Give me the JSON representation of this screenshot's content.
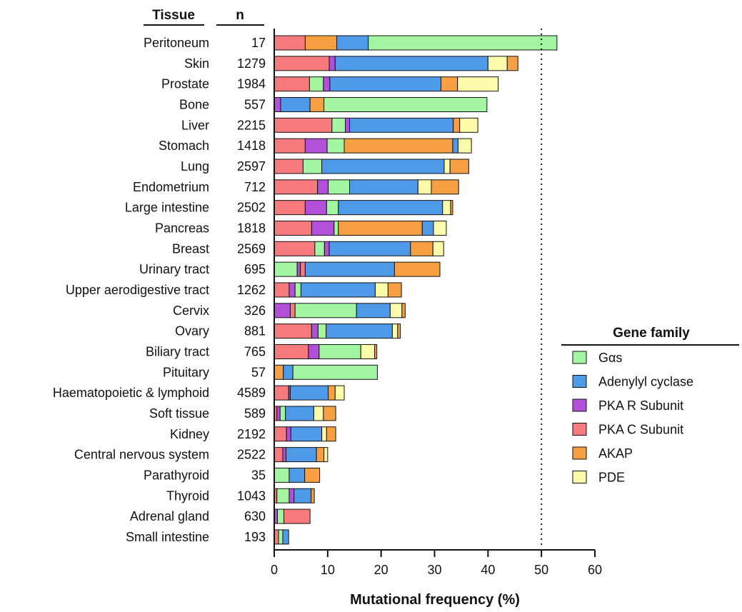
{
  "chart_data": {
    "type": "bar",
    "orientation": "horizontal",
    "stacked": true,
    "column_headers": {
      "tissue": "Tissue",
      "n": "n"
    },
    "xlabel": "Mutational frequency (%)",
    "xlim": [
      0,
      60
    ],
    "xticks": [
      "0",
      "10",
      "20",
      "30",
      "40",
      "50",
      "60"
    ],
    "reference_line": {
      "x": 50,
      "style": "dotted"
    },
    "legend": {
      "title": "Gene family",
      "placement": "right"
    },
    "categories": [
      "Peritoneum",
      "Skin",
      "Prostate",
      "Bone",
      "Liver",
      "Stomach",
      "Lung",
      "Endometrium",
      "Large intestine",
      "Pancreas",
      "Breast",
      "Urinary tract",
      "Upper aerodigestive tract",
      "Cervix",
      "Ovary",
      "Biliary tract",
      "Pituitary",
      "Haematopoietic & lymphoid",
      "Soft tissue",
      "Kidney",
      "Central nervous system",
      "Parathyroid",
      "Thyroid",
      "Adrenal gland",
      "Small intestine"
    ],
    "n": [
      "17",
      "1279",
      "1984",
      "557",
      "2215",
      "1418",
      "2597",
      "712",
      "2502",
      "1818",
      "2569",
      "695",
      "1262",
      "326",
      "881",
      "765",
      "57",
      "4589",
      "589",
      "2192",
      "2522",
      "35",
      "1043",
      "630",
      "193"
    ],
    "series_colors": {
      "gas": "#a4f5a2",
      "ac": "#4f9ae8",
      "pkar": "#b350d9",
      "pkac": "#f77b7c",
      "akap": "#f7a043",
      "pde": "#fbfbaa"
    },
    "series_names": {
      "gas": "Gαs",
      "ac": "Adenylyl cyclase",
      "pkar": "PKA R Subunit",
      "pkac": "PKA C Subunit",
      "akap": "AKAP",
      "pde": "PDE"
    },
    "legend_order": [
      "gas",
      "ac",
      "pkar",
      "pkac",
      "akap",
      "pde"
    ],
    "rows": [
      {
        "segments": [
          [
            "pkac",
            5.8
          ],
          [
            "akap",
            5.9
          ],
          [
            "ac",
            5.9
          ],
          [
            "gas",
            35.3
          ]
        ]
      },
      {
        "segments": [
          [
            "pkac",
            10.3
          ],
          [
            "pkar",
            1.1
          ],
          [
            "ac",
            28.6
          ],
          [
            "pde",
            3.6
          ],
          [
            "akap",
            2.0
          ]
        ]
      },
      {
        "segments": [
          [
            "pkac",
            6.6
          ],
          [
            "gas",
            2.6
          ],
          [
            "pkar",
            1.2
          ],
          [
            "ac",
            20.8
          ],
          [
            "akap",
            3.1
          ],
          [
            "pde",
            7.6
          ]
        ]
      },
      {
        "segments": [
          [
            "pkar",
            1.2
          ],
          [
            "ac",
            5.5
          ],
          [
            "akap",
            2.6
          ],
          [
            "gas",
            30.5
          ]
        ]
      },
      {
        "segments": [
          [
            "pkac",
            10.8
          ],
          [
            "gas",
            2.5
          ],
          [
            "pkar",
            0.8
          ],
          [
            "ac",
            19.4
          ],
          [
            "akap",
            1.2
          ],
          [
            "pde",
            3.4
          ]
        ]
      },
      {
        "segments": [
          [
            "pkac",
            5.8
          ],
          [
            "pkar",
            4.1
          ],
          [
            "gas",
            3.2
          ],
          [
            "akap",
            20.3
          ],
          [
            "ac",
            1.0
          ],
          [
            "pde",
            2.5
          ]
        ]
      },
      {
        "segments": [
          [
            "pkac",
            5.4
          ],
          [
            "gas",
            3.5
          ],
          [
            "ac",
            22.9
          ],
          [
            "pde",
            1.1
          ],
          [
            "akap",
            3.5
          ]
        ]
      },
      {
        "segments": [
          [
            "pkac",
            8.1
          ],
          [
            "pkar",
            2.0
          ],
          [
            "gas",
            4.0
          ],
          [
            "ac",
            12.8
          ],
          [
            "pde",
            2.5
          ],
          [
            "akap",
            5.1
          ]
        ]
      },
      {
        "segments": [
          [
            "pkac",
            5.8
          ],
          [
            "pkar",
            4.0
          ],
          [
            "gas",
            2.2
          ],
          [
            "ac",
            19.5
          ],
          [
            "pde",
            1.5
          ],
          [
            "akap",
            0.4
          ]
        ]
      },
      {
        "segments": [
          [
            "pkac",
            7.0
          ],
          [
            "pkar",
            4.2
          ],
          [
            "gas",
            0.8
          ],
          [
            "akap",
            15.7
          ],
          [
            "ac",
            2.1
          ],
          [
            "pde",
            2.4
          ]
        ]
      },
      {
        "segments": [
          [
            "pkac",
            7.6
          ],
          [
            "gas",
            1.8
          ],
          [
            "pkar",
            0.9
          ],
          [
            "ac",
            15.2
          ],
          [
            "akap",
            4.2
          ],
          [
            "pde",
            2.0
          ]
        ]
      },
      {
        "segments": [
          [
            "gas",
            4.3
          ],
          [
            "pkar",
            0.6
          ],
          [
            "pkac",
            0.9
          ],
          [
            "ac",
            16.7
          ],
          [
            "akap",
            8.5
          ]
        ]
      },
      {
        "segments": [
          [
            "pkac",
            2.8
          ],
          [
            "pkar",
            1.1
          ],
          [
            "gas",
            1.1
          ],
          [
            "ac",
            13.9
          ],
          [
            "pde",
            2.4
          ],
          [
            "akap",
            2.5
          ]
        ]
      },
      {
        "segments": [
          [
            "pkar",
            3.0
          ],
          [
            "pkac",
            0.9
          ],
          [
            "gas",
            11.5
          ],
          [
            "ac",
            6.3
          ],
          [
            "pde",
            2.2
          ],
          [
            "akap",
            0.6
          ]
        ]
      },
      {
        "segments": [
          [
            "pkac",
            7.0
          ],
          [
            "pkar",
            1.2
          ],
          [
            "gas",
            1.5
          ],
          [
            "ac",
            12.4
          ],
          [
            "pde",
            1.0
          ],
          [
            "akap",
            0.5
          ]
        ]
      },
      {
        "segments": [
          [
            "pkac",
            6.4
          ],
          [
            "pkar",
            2.0
          ],
          [
            "gas",
            7.8
          ],
          [
            "pde",
            2.6
          ],
          [
            "akap",
            0.4
          ]
        ]
      },
      {
        "segments": [
          [
            "akap",
            1.7
          ],
          [
            "ac",
            1.8
          ],
          [
            "gas",
            15.8
          ]
        ]
      },
      {
        "segments": [
          [
            "pkac",
            2.7
          ],
          [
            "pkar",
            0.3
          ],
          [
            "ac",
            7.1
          ],
          [
            "akap",
            1.3
          ],
          [
            "pde",
            1.7
          ]
        ]
      },
      {
        "segments": [
          [
            "pkac",
            0.5
          ],
          [
            "pkar",
            0.6
          ],
          [
            "gas",
            1.0
          ],
          [
            "ac",
            5.3
          ],
          [
            "pde",
            1.8
          ],
          [
            "akap",
            2.3
          ]
        ]
      },
      {
        "segments": [
          [
            "pkac",
            2.3
          ],
          [
            "pkar",
            0.8
          ],
          [
            "ac",
            5.8
          ],
          [
            "pde",
            0.9
          ],
          [
            "akap",
            1.7
          ]
        ]
      },
      {
        "segments": [
          [
            "pkac",
            1.6
          ],
          [
            "pkar",
            0.6
          ],
          [
            "ac",
            5.7
          ],
          [
            "akap",
            1.4
          ],
          [
            "pde",
            0.7
          ]
        ]
      },
      {
        "segments": [
          [
            "gas",
            2.8
          ],
          [
            "ac",
            2.9
          ],
          [
            "akap",
            2.8
          ]
        ]
      },
      {
        "segments": [
          [
            "pkac",
            0.5
          ],
          [
            "gas",
            2.3
          ],
          [
            "pkar",
            0.9
          ],
          [
            "ac",
            3.2
          ],
          [
            "akap",
            0.6
          ]
        ]
      },
      {
        "segments": [
          [
            "pkar",
            0.6
          ],
          [
            "gas",
            1.2
          ],
          [
            "pkac",
            4.9
          ]
        ]
      },
      {
        "segments": [
          [
            "pkac",
            0.8
          ],
          [
            "gas",
            0.8
          ],
          [
            "ac",
            1.1
          ]
        ]
      }
    ]
  }
}
